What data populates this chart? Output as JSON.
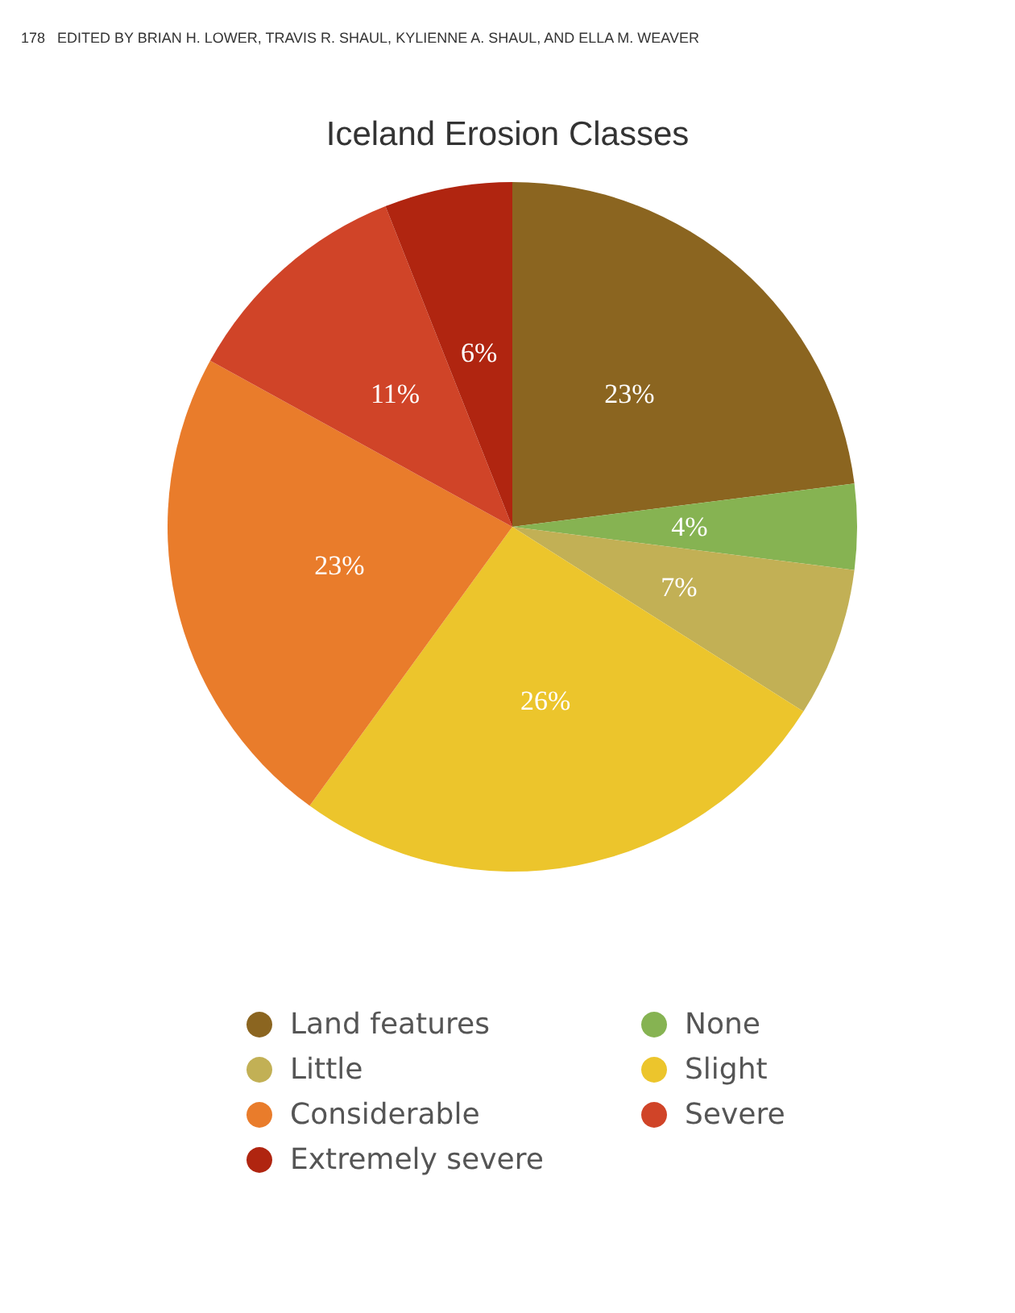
{
  "chart_data": {
    "type": "pie",
    "title": "Iceland Erosion Classes",
    "annotations": [
      "178   EDITED BY BRIAN H. LOWER, TRAVIS R. SHAUL, KYLIENNE A. SHAUL, AND ELLA M. WEAVER"
    ],
    "categories": [
      "Land features",
      "None",
      "Little",
      "Slight",
      "Considerable",
      "Severe",
      "Extremely severe"
    ],
    "values": [
      23,
      4,
      7,
      26,
      23,
      11,
      6
    ],
    "colors": [
      "#8b6520",
      "#86b352",
      "#c2b055",
      "#ecc52c",
      "#e97c2b",
      "#d04428",
      "#b02510"
    ],
    "value_labels": [
      "23%",
      "4%",
      "7%",
      "26%",
      "23%",
      "11%",
      "6%"
    ],
    "legend": "bottom"
  }
}
